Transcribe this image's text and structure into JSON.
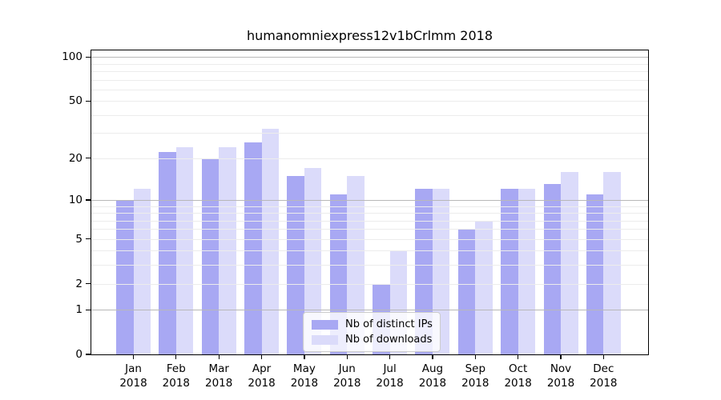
{
  "chart_data": {
    "type": "bar",
    "title": "humanomniexpress12v1bCrlmm 2018",
    "categories": [
      "Jan 2018",
      "Feb 2018",
      "Mar 2018",
      "Apr 2018",
      "May 2018",
      "Jun 2018",
      "Jul 2018",
      "Aug 2018",
      "Sep 2018",
      "Oct 2018",
      "Nov 2018",
      "Dec 2018"
    ],
    "series": [
      {
        "name": "Nb of distinct IPs",
        "color": "#a8a8f3",
        "values": [
          10,
          22,
          20,
          26,
          15,
          11,
          2,
          12,
          6,
          12,
          13,
          11
        ]
      },
      {
        "name": "Nb of downloads",
        "color": "#dbdbfa",
        "values": [
          12,
          24,
          24,
          32,
          17,
          15,
          4,
          12,
          7,
          12,
          16,
          16
        ]
      }
    ],
    "yscale": "log1p",
    "ylim": [
      0,
      111
    ],
    "yticks": [
      0,
      1,
      2,
      5,
      10,
      20,
      50,
      100
    ],
    "gridlines": {
      "major": [
        1,
        10,
        100
      ],
      "minor": [
        2,
        3,
        4,
        5,
        6,
        7,
        8,
        9,
        20,
        30,
        40,
        50,
        60,
        70,
        80,
        90
      ]
    },
    "legend": {
      "position": "lower-center"
    },
    "xlabel": "",
    "ylabel": ""
  }
}
